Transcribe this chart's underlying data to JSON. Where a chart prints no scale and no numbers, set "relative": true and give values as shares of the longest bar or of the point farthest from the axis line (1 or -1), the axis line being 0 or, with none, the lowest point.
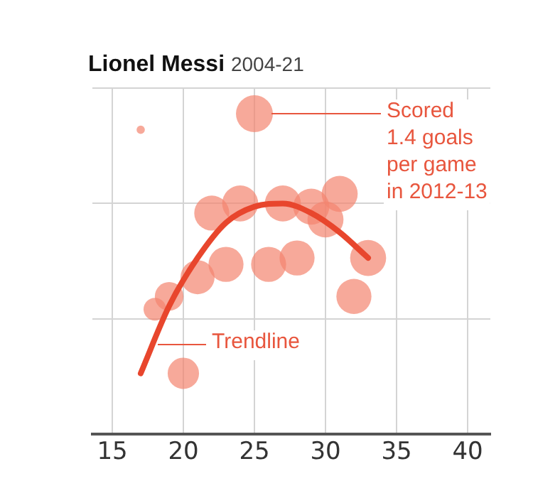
{
  "chart_data": {
    "type": "bubble",
    "title": "Lionel Messi",
    "subtitle": "2004-21",
    "relative": true,
    "x": [
      17,
      18,
      19,
      20,
      21,
      22,
      23,
      24,
      25,
      26,
      27,
      28,
      29,
      30,
      31,
      32,
      33
    ],
    "xlim": [
      13.6,
      41.6
    ],
    "xticks": [
      15,
      20,
      25,
      30,
      35,
      40
    ],
    "grid": true,
    "legend": false,
    "series": [
      {
        "color": "#f3846f",
        "values": [
          0.95,
          0.39,
          0.43,
          0.19,
          0.49,
          0.69,
          0.53,
          0.72,
          1,
          0.53,
          0.72,
          0.55,
          0.71,
          0.67,
          0.75,
          0.43,
          0.55
        ],
        "sizes": [
          0.05,
          0.38,
          0.6,
          0.72,
          0.85,
          0.9,
          0.9,
          0.95,
          1,
          0.9,
          0.95,
          0.9,
          0.95,
          0.95,
          0.95,
          0.9,
          0.95
        ]
      },
      {
        "type": "line",
        "color": "#e8462d",
        "x": [
          17,
          19,
          21,
          23,
          25,
          27,
          29,
          31,
          33
        ],
        "values": [
          0.19,
          0.4,
          0.55,
          0.66,
          0.71,
          0.72,
          0.69,
          0.63,
          0.55
        ]
      }
    ],
    "annotations": [
      "Scored 1.4 goals per game in 2012-13",
      {
        "text": "Trendline",
        "x": 18,
        "y": 0.28
      }
    ]
  }
}
